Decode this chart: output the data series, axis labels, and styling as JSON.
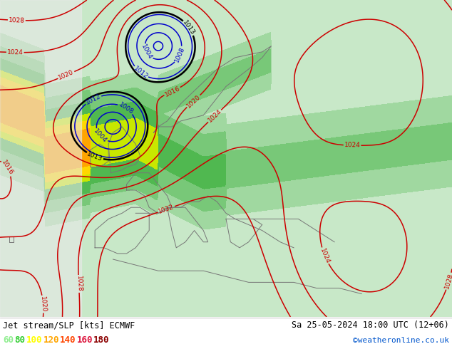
{
  "title_left": "Jet stream/SLP [kts] ECMWF",
  "title_right": "Sa 25-05-2024 18:00 UTC (12+06)",
  "credit": "©weatheronline.co.uk",
  "legend_values": [
    60,
    80,
    100,
    120,
    140,
    160,
    180
  ],
  "legend_colors": [
    "#90ee90",
    "#32cd32",
    "#ffff00",
    "#ffa500",
    "#ff4500",
    "#dc143c",
    "#8b0000"
  ],
  "figsize": [
    6.34,
    4.9
  ],
  "dpi": 100,
  "ocean_color": "#e8e8e8",
  "land_color": "#d4e8d4",
  "jet_colors": [
    "#c8e8c8",
    "#a0d8a0",
    "#78c878",
    "#50b850",
    "#c8e800",
    "#ffd700",
    "#ffa500",
    "#ff6400",
    "#ff0000"
  ],
  "jet_levels": [
    0,
    40,
    60,
    80,
    100,
    110,
    120,
    140,
    160,
    200
  ],
  "blue_isobar_color": "#0000cc",
  "red_isobar_color": "#cc0000",
  "black_isobar_color": "#000000"
}
